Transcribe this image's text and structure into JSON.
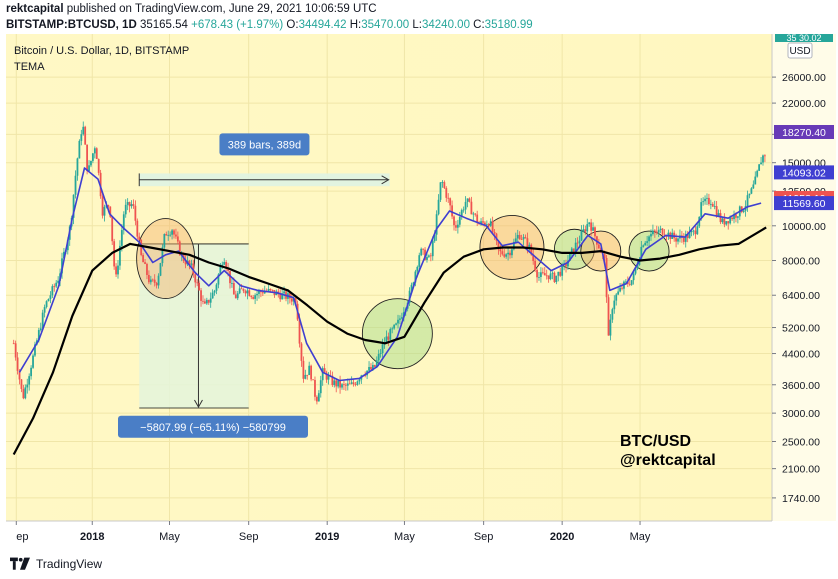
{
  "header": {
    "author": "rektcapital",
    "published_text": "published on TradingView.com, June 29, 2021 10:06:59 UTC",
    "symbol": "BITSTAMP:BTCUSD, 1D",
    "last": "35165.54",
    "change": "+678.43 (+1.97%)",
    "o_label": "O:",
    "o": "34494.42",
    "h_label": "H:",
    "h": "35470.00",
    "l_label": "L:",
    "l": "34240.00",
    "c_label": "C:",
    "c": "35180.99"
  },
  "chart": {
    "title": "Bitcoin / U.S. Dollar, 1D, BITSTAMP",
    "indicator": "TEMA",
    "currency": "USD",
    "top_label": "35 30.02",
    "watermark_line1": "BTC/USD",
    "watermark_line2": "@rektcapital",
    "range_bars": "389 bars, 389d",
    "drawdown_label": "−5807.99 (−65.11%) −580799"
  },
  "price_tags": [
    {
      "value": "18270.40",
      "color": "#673ab7"
    },
    {
      "value": "14093.02",
      "color": "#3f3fd1"
    },
    {
      "value": "11958.10",
      "color": "#ef5350"
    },
    {
      "value": "11569.60",
      "color": "#3f3fd1"
    }
  ],
  "footer": {
    "brand": "TradingView"
  },
  "chart_data": {
    "type": "line",
    "y_scale": "log",
    "ylim": [
      1500,
      33000
    ],
    "y_ticks": [
      26000,
      22000,
      18000,
      15000,
      12500,
      10000,
      8000,
      6400,
      5200,
      4400,
      3600,
      3000,
      2500,
      2100,
      1740
    ],
    "x_ticks": [
      "ep",
      "2018",
      "May",
      "Sep",
      "2019",
      "May",
      "Sep",
      "2020",
      "May"
    ],
    "series": [
      {
        "name": "BTCUSD",
        "color": "#26a69a",
        "points": [
          [
            "2017-09-01",
            4700
          ],
          [
            "2017-09-15",
            3300
          ],
          [
            "2017-10-01",
            4300
          ],
          [
            "2017-10-20",
            6000
          ],
          [
            "2017-11-10",
            7200
          ],
          [
            "2017-11-28",
            10000
          ],
          [
            "2017-12-08",
            15000
          ],
          [
            "2017-12-17",
            19500
          ],
          [
            "2017-12-25",
            14000
          ],
          [
            "2018-01-06",
            17000
          ],
          [
            "2018-01-17",
            11000
          ],
          [
            "2018-01-28",
            11500
          ],
          [
            "2018-02-06",
            6900
          ],
          [
            "2018-02-20",
            11200
          ],
          [
            "2018-03-05",
            11500
          ],
          [
            "2018-03-18",
            8200
          ],
          [
            "2018-04-01",
            6900
          ],
          [
            "2018-04-12",
            7000
          ],
          [
            "2018-04-24",
            9500
          ],
          [
            "2018-05-05",
            9800
          ],
          [
            "2018-05-20",
            8200
          ],
          [
            "2018-06-05",
            7600
          ],
          [
            "2018-06-24",
            5900
          ],
          [
            "2018-07-10",
            6600
          ],
          [
            "2018-07-24",
            8300
          ],
          [
            "2018-08-10",
            6300
          ],
          [
            "2018-08-25",
            6700
          ],
          [
            "2018-09-08",
            6400
          ],
          [
            "2018-09-25",
            6600
          ],
          [
            "2018-10-10",
            6500
          ],
          [
            "2018-10-30",
            6350
          ],
          [
            "2018-11-14",
            6200
          ],
          [
            "2018-11-20",
            4600
          ],
          [
            "2018-11-25",
            3800
          ],
          [
            "2018-12-05",
            4000
          ],
          [
            "2018-12-15",
            3250
          ],
          [
            "2018-12-25",
            3900
          ],
          [
            "2019-01-10",
            3650
          ],
          [
            "2019-01-25",
            3550
          ],
          [
            "2019-02-10",
            3600
          ],
          [
            "2019-02-25",
            3900
          ],
          [
            "2019-03-15",
            4000
          ],
          [
            "2019-04-01",
            4800
          ],
          [
            "2019-04-20",
            5300
          ],
          [
            "2019-05-10",
            6500
          ],
          [
            "2019-05-25",
            8500
          ],
          [
            "2019-06-10",
            8000
          ],
          [
            "2019-06-20",
            10500
          ],
          [
            "2019-06-27",
            13500
          ],
          [
            "2019-07-10",
            11500
          ],
          [
            "2019-07-18",
            9800
          ],
          [
            "2019-08-05",
            11800
          ],
          [
            "2019-08-25",
            10100
          ],
          [
            "2019-09-10",
            10300
          ],
          [
            "2019-09-25",
            8400
          ],
          [
            "2019-10-10",
            8400
          ],
          [
            "2019-10-26",
            9500
          ],
          [
            "2019-11-10",
            8800
          ],
          [
            "2019-11-25",
            7200
          ],
          [
            "2019-12-10",
            7300
          ],
          [
            "2019-12-20",
            7150
          ],
          [
            "2020-01-05",
            7700
          ],
          [
            "2020-01-20",
            8700
          ],
          [
            "2020-02-12",
            10300
          ],
          [
            "2020-02-28",
            8700
          ],
          [
            "2020-03-08",
            7900
          ],
          [
            "2020-03-13",
            4800
          ],
          [
            "2020-03-20",
            6200
          ],
          [
            "2020-04-05",
            6800
          ],
          [
            "2020-04-20",
            7100
          ],
          [
            "2020-05-05",
            9000
          ],
          [
            "2020-05-20",
            9500
          ],
          [
            "2020-06-05",
            9700
          ],
          [
            "2020-06-25",
            9200
          ],
          [
            "2020-07-10",
            9300
          ],
          [
            "2020-07-25",
            9600
          ],
          [
            "2020-08-05",
            11500
          ],
          [
            "2020-08-20",
            11800
          ],
          [
            "2020-09-05",
            10200
          ],
          [
            "2020-09-25",
            10700
          ],
          [
            "2020-10-10",
            11300
          ],
          [
            "2020-10-25",
            12950
          ],
          [
            "2020-11-06",
            15500
          ],
          [
            "2020-11-13",
            16000
          ]
        ]
      },
      {
        "name": "TEMA",
        "color": "#3f3fd1",
        "points": [
          [
            "2017-09-10",
            3900
          ],
          [
            "2017-10-10",
            4800
          ],
          [
            "2017-11-10",
            6800
          ],
          [
            "2017-12-01",
            10500
          ],
          [
            "2017-12-20",
            14500
          ],
          [
            "2018-01-10",
            13500
          ],
          [
            "2018-01-28",
            10800
          ],
          [
            "2018-02-20",
            9800
          ],
          [
            "2018-03-15",
            9000
          ],
          [
            "2018-04-05",
            7900
          ],
          [
            "2018-04-25",
            8300
          ],
          [
            "2018-05-15",
            8500
          ],
          [
            "2018-06-10",
            7400
          ],
          [
            "2018-07-01",
            6800
          ],
          [
            "2018-07-25",
            7500
          ],
          [
            "2018-08-20",
            6800
          ],
          [
            "2018-09-15",
            6600
          ],
          [
            "2018-10-15",
            6500
          ],
          [
            "2018-11-10",
            6300
          ],
          [
            "2018-11-30",
            4700
          ],
          [
            "2018-12-25",
            3900
          ],
          [
            "2019-01-20",
            3700
          ],
          [
            "2019-02-20",
            3750
          ],
          [
            "2019-03-20",
            4050
          ],
          [
            "2019-04-20",
            4900
          ],
          [
            "2019-05-20",
            7200
          ],
          [
            "2019-06-20",
            9800
          ],
          [
            "2019-07-10",
            11000
          ],
          [
            "2019-08-05",
            10500
          ],
          [
            "2019-09-05",
            10000
          ],
          [
            "2019-09-30",
            8800
          ],
          [
            "2019-10-25",
            9000
          ],
          [
            "2019-11-20",
            8200
          ],
          [
            "2019-12-15",
            7500
          ],
          [
            "2020-01-10",
            7900
          ],
          [
            "2020-02-10",
            9400
          ],
          [
            "2020-03-01",
            8900
          ],
          [
            "2020-03-15",
            6600
          ],
          [
            "2020-04-10",
            6900
          ],
          [
            "2020-05-10",
            8600
          ],
          [
            "2020-06-10",
            9400
          ],
          [
            "2020-07-10",
            9300
          ],
          [
            "2020-08-10",
            10800
          ],
          [
            "2020-09-15",
            10500
          ],
          [
            "2020-10-15",
            11300
          ],
          [
            "2020-11-05",
            11569.6
          ]
        ]
      },
      {
        "name": "EMA",
        "color": "#000000",
        "points": [
          [
            "2017-09-01",
            2300
          ],
          [
            "2017-10-01",
            2900
          ],
          [
            "2017-11-01",
            3900
          ],
          [
            "2017-12-01",
            5600
          ],
          [
            "2018-01-01",
            7500
          ],
          [
            "2018-02-01",
            8400
          ],
          [
            "2018-03-01",
            8900
          ],
          [
            "2018-04-01",
            8700
          ],
          [
            "2018-05-01",
            8500
          ],
          [
            "2018-06-01",
            8300
          ],
          [
            "2018-07-01",
            7900
          ],
          [
            "2018-08-01",
            7600
          ],
          [
            "2018-09-01",
            7200
          ],
          [
            "2018-10-01",
            6900
          ],
          [
            "2018-11-01",
            6600
          ],
          [
            "2018-12-01",
            6000
          ],
          [
            "2019-01-01",
            5400
          ],
          [
            "2019-02-01",
            5000
          ],
          [
            "2019-03-01",
            4800
          ],
          [
            "2019-04-01",
            4700
          ],
          [
            "2019-05-01",
            4900
          ],
          [
            "2019-06-01",
            6100
          ],
          [
            "2019-07-01",
            7400
          ],
          [
            "2019-08-01",
            8200
          ],
          [
            "2019-09-01",
            8600
          ],
          [
            "2019-10-01",
            8700
          ],
          [
            "2019-11-01",
            8700
          ],
          [
            "2019-12-01",
            8600
          ],
          [
            "2020-01-01",
            8400
          ],
          [
            "2020-02-01",
            8400
          ],
          [
            "2020-03-01",
            8500
          ],
          [
            "2020-04-01",
            8200
          ],
          [
            "2020-05-01",
            8000
          ],
          [
            "2020-06-01",
            8100
          ],
          [
            "2020-07-01",
            8300
          ],
          [
            "2020-08-01",
            8600
          ],
          [
            "2020-09-01",
            8800
          ],
          [
            "2020-10-01",
            8900
          ],
          [
            "2020-11-01",
            9600
          ],
          [
            "2020-11-13",
            9900
          ]
        ]
      }
    ],
    "annotations": [
      {
        "type": "circle",
        "color": "orange",
        "center": [
          "2018-04-25",
          8100
        ]
      },
      {
        "type": "circle",
        "color": "green",
        "center": [
          "2019-04-20",
          5000
        ]
      },
      {
        "type": "circle",
        "color": "orange",
        "center": [
          "2019-10-15",
          8700
        ]
      },
      {
        "type": "circle",
        "color": "green",
        "center": [
          "2020-01-20",
          8600
        ]
      },
      {
        "type": "circle",
        "color": "orange",
        "center": [
          "2020-03-01",
          8500
        ]
      },
      {
        "type": "circle",
        "color": "green",
        "center": [
          "2020-05-15",
          8500
        ]
      }
    ]
  }
}
